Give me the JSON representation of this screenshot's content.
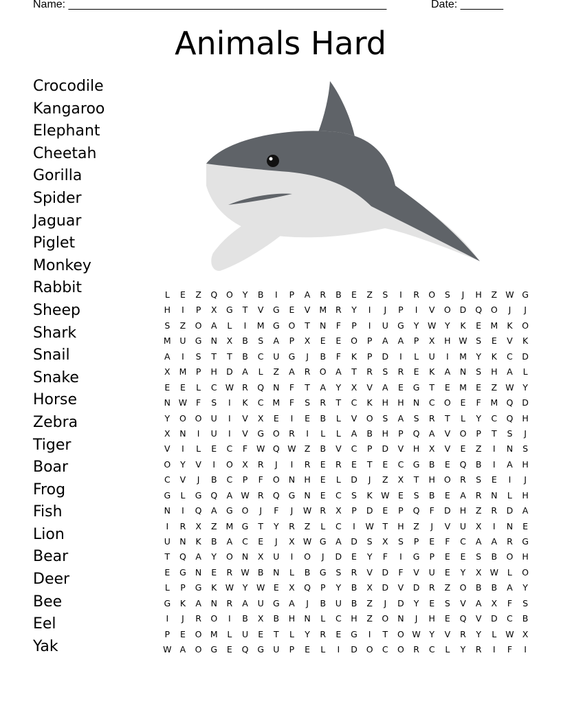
{
  "header": {
    "name_label": "Name: ____________________________________________________",
    "date_label": "Date: _______"
  },
  "title": "Animals Hard",
  "image": {
    "icon": "shark-illustration",
    "colors": {
      "body": "#5f6368",
      "belly": "#e3e3e3",
      "eye": "#111111"
    }
  },
  "words": [
    "Crocodile",
    "Kangaroo",
    "Elephant",
    "Cheetah",
    "Gorilla",
    "Spider",
    "Jaguar",
    "Piglet",
    "Monkey",
    "Rabbit",
    "Sheep",
    "Shark",
    "Snail",
    "Snake",
    "Horse",
    "Zebra",
    "Tiger",
    "Boar",
    "Frog",
    "Fish",
    "Lion",
    "Bear",
    "Deer",
    "Bee",
    "Eel",
    "Yak"
  ],
  "grid": [
    "LEZQOYBIPARBEZSIROSJHZWG",
    "HIPXGTVGEVMRYIJPIVODQOJJ",
    "SZOALIMGOTNFPIUGYWYKEMKO",
    "MUGNXBSAPXEEOPAAPXHWSEVK",
    "AISTTBCUGJBFKPDILUIMYKCD",
    "XMPHDALZAROATRSREKANSHAL",
    "EELCWRQNFTAYXVAEGTEMEZWY",
    "NWFSIKCMFSRTCKHHNCOEFMQD",
    "YOOUIVXEIEBLVOSASRTLYCQH",
    "XNIUIVGORILLABHPQAVOPTSJ",
    "VILECFWQWZBVCPDVHXVEZINS",
    "OYVIOXRJIRERETECGBEQBIAH",
    "CVJBCPFONHELDJZXTHORSEIJ",
    "GLGQAWRQGNECSKWESBEARNLH",
    "NIQAGOJFJWRXPDEPQFDHZRDA",
    "IRXZMGTYRZLCIWTHZJVUXINE",
    "UNKBACEJXWGADSXSPEFCAARG",
    "TQAYONXUIOJDEYFIGPEESBOH",
    "EGNERWBNLBGSRVDFVUEYXWLO",
    "LPGKWYWEXQPYBXDVDRZOBBAY",
    "GKANRAUGAJBUBZJDYESVAXFS",
    "IJROIBXBHNLCHZONJHEQVDCB",
    "PEOMLUETLYREGITOWYVRYLWX",
    "WAOGEQGUPELIDOCORCLYRIFI"
  ]
}
